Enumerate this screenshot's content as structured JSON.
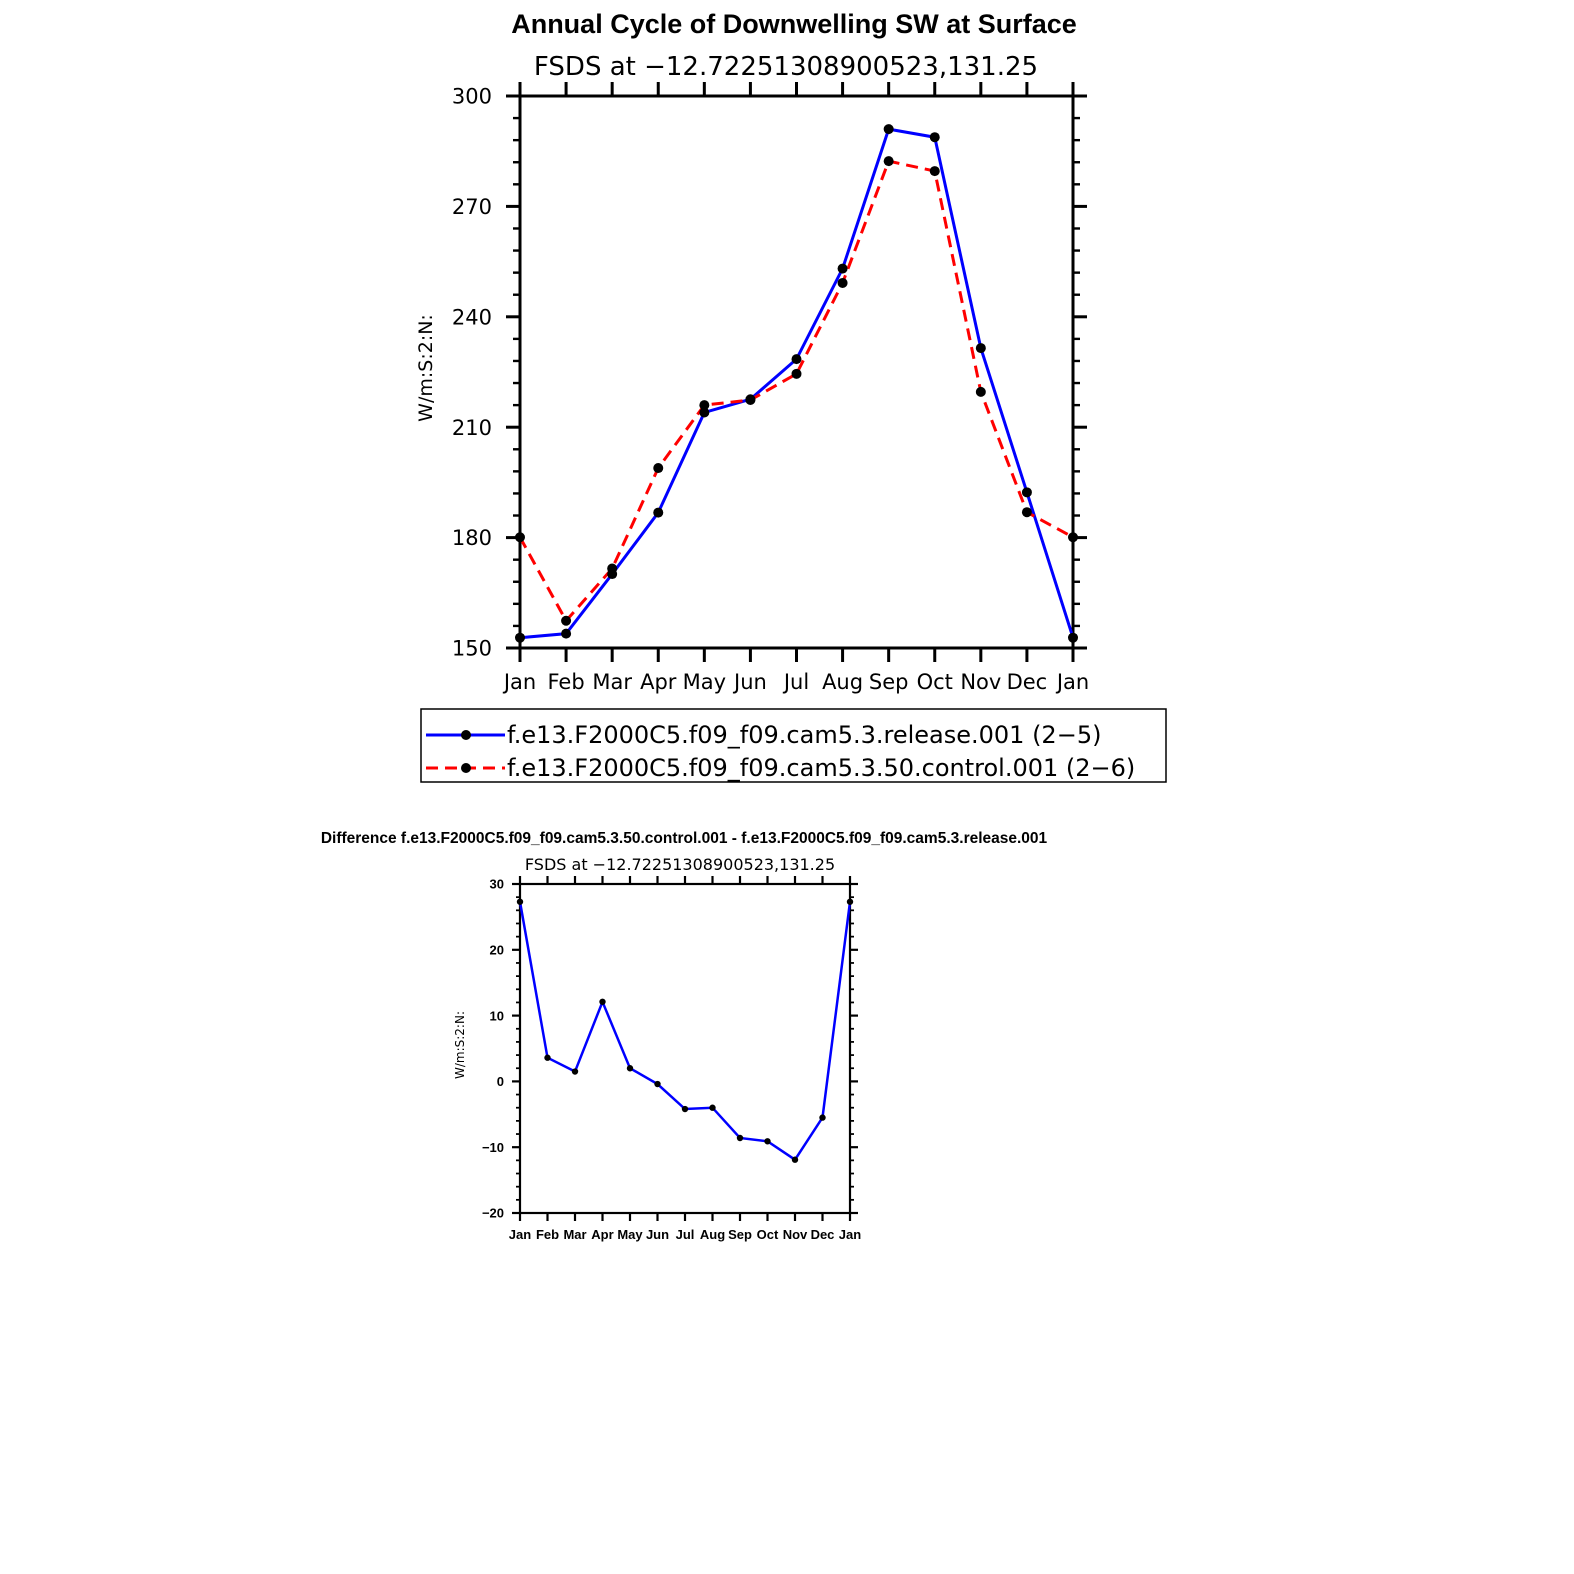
{
  "colors": {
    "series1": "#0000ff",
    "series2": "#ff0000",
    "marker": "#000000",
    "axis": "#000000"
  },
  "chart_data": [
    {
      "type": "line",
      "title": "Annual Cycle of Downwelling SW at Surface",
      "subtitle": "FSDS at −12.72251308900523,131.25",
      "ylabel": "W/m:S:2:N:",
      "xlabel": "",
      "categories": [
        "Jan",
        "Feb",
        "Mar",
        "Apr",
        "May",
        "Jun",
        "Jul",
        "Aug",
        "Sep",
        "Oct",
        "Nov",
        "Dec",
        "Jan"
      ],
      "ylim": [
        150,
        300
      ],
      "yticks": [
        "150",
        "180",
        "210",
        "240",
        "270",
        "300"
      ],
      "legend_position": "bottom",
      "series": [
        {
          "name": "f.e13.F2000C5.f09_f09.cam5.3.release.001 (2−5)",
          "color": "#0000ff",
          "dash": "solid",
          "values": [
            152.8,
            153.9,
            170.1,
            186.8,
            214.0,
            217.6,
            228.5,
            253.1,
            291.0,
            288.8,
            231.5,
            192.3,
            152.8
          ]
        },
        {
          "name": "f.e13.F2000C5.f09_f09.cam5.3.50.control.001 (2−6)",
          "color": "#ff0000",
          "dash": "dashed",
          "values": [
            180.1,
            157.4,
            171.6,
            198.9,
            216.0,
            217.4,
            224.5,
            249.2,
            282.3,
            279.6,
            219.6,
            186.9,
            180.1
          ]
        }
      ]
    },
    {
      "type": "line",
      "title": "Difference f.e13.F2000C5.f09_f09.cam5.3.50.control.001 - f.e13.F2000C5.f09_f09.cam5.3.release.001",
      "subtitle": "FSDS at −12.72251308900523,131.25",
      "ylabel": "W/m:S:2:N:",
      "xlabel": "",
      "categories": [
        "Jan",
        "Feb",
        "Mar",
        "Apr",
        "May",
        "Jun",
        "Jul",
        "Aug",
        "Sep",
        "Oct",
        "Nov",
        "Dec",
        "Jan"
      ],
      "ylim": [
        -20,
        30
      ],
      "yticks": [
        "−20",
        "−10",
        "0",
        "10",
        "20",
        "30"
      ],
      "series": [
        {
          "color": "#0000ff",
          "dash": "solid",
          "values": [
            27.3,
            3.6,
            1.5,
            12.1,
            2.0,
            -0.4,
            -4.2,
            -4.0,
            -8.6,
            -9.1,
            -11.9,
            -5.5,
            27.3
          ]
        }
      ]
    }
  ]
}
